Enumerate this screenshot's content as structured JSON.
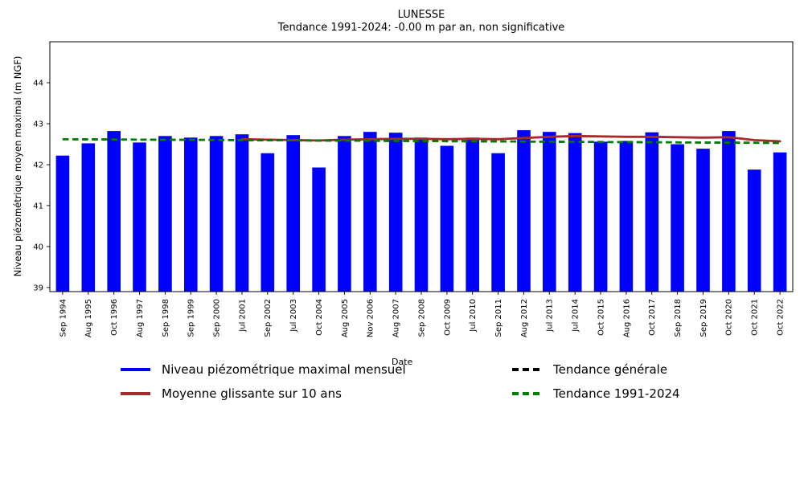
{
  "chart_data": {
    "type": "bar",
    "title": "LUNESSE",
    "subtitle": "Tendance 1991-2024: -0.00 m par an, non significative",
    "xlabel": "Date",
    "ylabel": "Niveau piézométrique moyen maximal (m NGF)",
    "ylim": [
      38.9,
      45.0
    ],
    "yticks": [
      39,
      40,
      41,
      42,
      43,
      44
    ],
    "grid": false,
    "legend_position": "below",
    "categories": [
      "Sep 1994",
      "Aug 1995",
      "Oct 1996",
      "Aug 1997",
      "Sep 1998",
      "Sep 1999",
      "Sep 2000",
      "Jul 2001",
      "Sep 2002",
      "Jul 2003",
      "Oct 2004",
      "Aug 2005",
      "Nov 2006",
      "Aug 2007",
      "Sep 2008",
      "Oct 2009",
      "Jul 2010",
      "Sep 2011",
      "Aug 2012",
      "Jul 2013",
      "Jul 2014",
      "Oct 2015",
      "Aug 2016",
      "Oct 2017",
      "Sep 2018",
      "Sep 2019",
      "Oct 2020",
      "Oct 2021",
      "Oct 2022"
    ],
    "series": [
      {
        "name": "Niveau piézométrique maximal mensuel",
        "type": "bar",
        "color": "#0000ff",
        "values": [
          42.22,
          42.52,
          42.82,
          42.54,
          42.7,
          42.66,
          42.7,
          42.74,
          42.28,
          42.72,
          41.93,
          42.7,
          42.8,
          42.78,
          42.66,
          42.46,
          42.66,
          42.28,
          42.84,
          42.8,
          42.77,
          42.56,
          42.58,
          42.79,
          42.5,
          42.39,
          42.82,
          41.88,
          42.3
        ]
      },
      {
        "name": "Moyenne glissante sur 10 ans",
        "type": "line",
        "color": "#a52a2a",
        "values": [
          null,
          null,
          null,
          null,
          null,
          null,
          null,
          42.62,
          42.61,
          42.6,
          42.59,
          42.61,
          42.62,
          42.63,
          42.63,
          42.62,
          42.63,
          42.62,
          42.65,
          42.68,
          42.7,
          42.69,
          42.68,
          42.68,
          42.67,
          42.66,
          42.67,
          42.6,
          42.57
        ]
      },
      {
        "name": "Tendance générale",
        "type": "trend-dashed",
        "color": "#000000",
        "endpoints": [
          42.62,
          42.53
        ]
      },
      {
        "name": "Tendance 1991-2024",
        "type": "trend-dashed",
        "color": "#008000",
        "endpoints": [
          42.62,
          42.53
        ]
      }
    ]
  }
}
